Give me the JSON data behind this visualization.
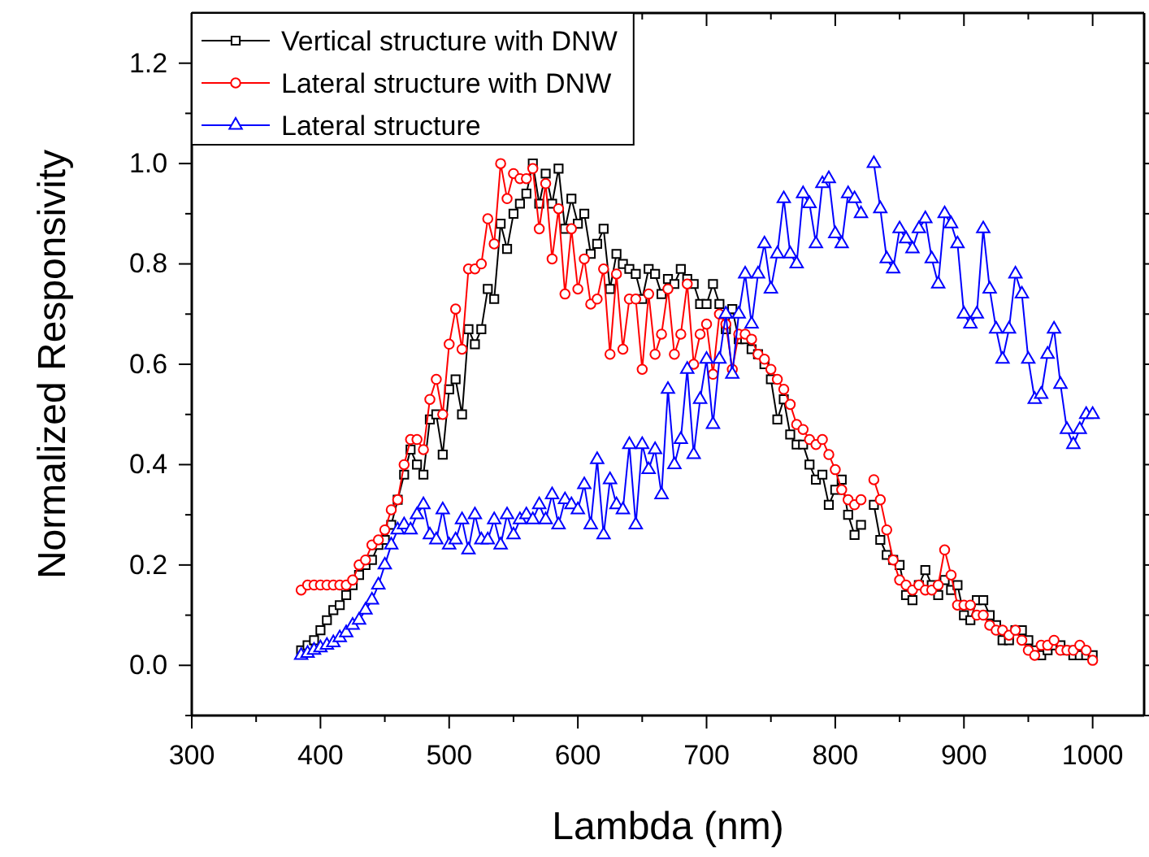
{
  "chart_data": {
    "type": "line",
    "xlabel": "Lambda (nm)",
    "ylabel": "Normalized Responsivity",
    "xlim": [
      300,
      1040
    ],
    "ylim": [
      -0.1,
      1.3
    ],
    "xticks": [
      300,
      {
        "value": 350,
        "label": null
      },
      400,
      {
        "value": 450,
        "label": null
      },
      500,
      {
        "value": 550,
        "label": null
      },
      600,
      {
        "value": 650,
        "label": null
      },
      700,
      {
        "value": 750,
        "label": null
      },
      800,
      {
        "value": 850,
        "label": null
      },
      900,
      {
        "value": 950,
        "label": null
      },
      1000
    ],
    "yticks": [
      {
        "value": -0.1,
        "label": null
      },
      {
        "value": 0,
        "label": "0.0"
      },
      {
        "value": 0.1,
        "label": null
      },
      {
        "value": 0.2,
        "label": "0.2"
      },
      {
        "value": 0.3,
        "label": null
      },
      {
        "value": 0.4,
        "label": "0.4"
      },
      {
        "value": 0.5,
        "label": null
      },
      {
        "value": 0.6,
        "label": "0.6"
      },
      {
        "value": 0.7,
        "label": null
      },
      {
        "value": 0.8,
        "label": "0.8"
      },
      {
        "value": 0.9,
        "label": null
      },
      {
        "value": 1.0,
        "label": "1.0"
      },
      {
        "value": 1.1,
        "label": null
      },
      {
        "value": 1.2,
        "label": "1.2"
      }
    ],
    "legend": "top left",
    "grid": false,
    "line_style": "solid",
    "series": [
      {
        "name": "Vertical structure with DNW",
        "color": "#000000",
        "marker": "square",
        "values": [
          0.03,
          0.04,
          0.05,
          0.07,
          0.09,
          0.11,
          0.12,
          0.14,
          0.16,
          0.18,
          0.2,
          0.21,
          0.24,
          0.25,
          0.28,
          0.33,
          0.38,
          0.43,
          0.4,
          0.38,
          0.49,
          0.5,
          0.42,
          0.55,
          0.57,
          0.5,
          0.67,
          0.64,
          0.67,
          0.75,
          0.73,
          0.88,
          0.83,
          0.9,
          0.92,
          0.94,
          1.0,
          0.92,
          0.98,
          0.92,
          0.99,
          0.87,
          0.93,
          0.88,
          0.9,
          0.82,
          0.84,
          0.87,
          0.75,
          0.82,
          0.8,
          0.79,
          0.78,
          0.73,
          0.79,
          0.78,
          0.74,
          0.77,
          0.76,
          0.79,
          0.77,
          0.76,
          0.72,
          0.72,
          0.76,
          0.72,
          0.67,
          0.71,
          0.65,
          0.65,
          0.63,
          0.62,
          0.6,
          0.57,
          0.49,
          0.53,
          0.46,
          0.44,
          0.44,
          0.4,
          0.37,
          0.38,
          0.32,
          0.35,
          0.37,
          0.3,
          0.26,
          0.28,
          null,
          0.32,
          0.25,
          0.22,
          0.21,
          0.2,
          0.14,
          0.13,
          0.16,
          0.19,
          0.16,
          0.14,
          0.17,
          0.15,
          0.16,
          0.1,
          0.09,
          0.13,
          0.13,
          0.1,
          0.08,
          0.05,
          0.05,
          0.07,
          0.07,
          0.05,
          0.03,
          0.02,
          0.03,
          0.04,
          0.04,
          0.03,
          0.02,
          0.02,
          0.02,
          0.02
        ]
      },
      {
        "name": "Lateral structure with DNW",
        "color": "#ff0000",
        "marker": "circle",
        "values": [
          0.15,
          0.16,
          0.16,
          0.16,
          0.16,
          0.16,
          0.16,
          0.16,
          0.17,
          0.2,
          0.21,
          0.24,
          0.25,
          0.27,
          0.31,
          0.33,
          0.4,
          0.45,
          0.45,
          0.43,
          0.53,
          0.57,
          0.5,
          0.64,
          0.71,
          0.63,
          0.79,
          0.79,
          0.8,
          0.89,
          0.84,
          1.0,
          0.93,
          0.98,
          0.97,
          0.97,
          0.99,
          0.87,
          0.96,
          0.81,
          0.91,
          0.74,
          0.87,
          0.75,
          0.81,
          0.72,
          0.73,
          0.79,
          0.62,
          0.78,
          0.63,
          0.73,
          0.73,
          0.59,
          0.74,
          0.62,
          0.66,
          0.75,
          0.62,
          0.66,
          0.76,
          0.6,
          0.66,
          0.68,
          0.58,
          0.7,
          0.68,
          0.59,
          0.66,
          0.66,
          0.65,
          0.62,
          0.61,
          0.59,
          0.57,
          0.55,
          0.52,
          0.48,
          0.47,
          0.45,
          0.44,
          0.45,
          0.42,
          0.39,
          0.35,
          0.33,
          0.32,
          0.33,
          null,
          0.37,
          0.33,
          0.27,
          0.21,
          0.17,
          0.16,
          0.15,
          0.16,
          0.15,
          0.15,
          0.16,
          0.23,
          0.18,
          0.12,
          0.12,
          0.12,
          0.1,
          0.1,
          0.08,
          0.07,
          0.07,
          0.06,
          0.07,
          0.05,
          0.03,
          0.02,
          0.04,
          0.04,
          0.05,
          0.03,
          0.03,
          0.03,
          0.04,
          0.03,
          0.01
        ]
      },
      {
        "name": "Lateral structure",
        "color": "#0000ff",
        "marker": "triangle",
        "values": [
          0.02,
          0.024,
          0.03,
          0.035,
          0.04,
          0.045,
          0.055,
          0.065,
          0.08,
          0.09,
          0.11,
          0.13,
          0.16,
          0.2,
          0.24,
          0.27,
          0.28,
          0.27,
          0.3,
          0.32,
          0.26,
          0.25,
          0.31,
          0.24,
          0.25,
          0.29,
          0.23,
          0.3,
          0.25,
          0.25,
          0.29,
          0.24,
          0.3,
          0.26,
          0.29,
          0.3,
          0.29,
          0.32,
          0.29,
          0.34,
          0.28,
          0.33,
          0.32,
          0.31,
          0.36,
          0.28,
          0.41,
          0.26,
          0.37,
          0.32,
          0.31,
          0.44,
          0.28,
          0.44,
          0.39,
          0.43,
          0.34,
          0.55,
          0.4,
          0.45,
          0.59,
          0.42,
          0.53,
          0.61,
          0.48,
          0.61,
          0.7,
          0.58,
          0.7,
          0.78,
          0.68,
          0.78,
          0.84,
          0.75,
          0.82,
          0.93,
          0.82,
          0.8,
          0.94,
          0.92,
          0.84,
          0.96,
          0.97,
          0.86,
          0.84,
          0.94,
          0.93,
          0.9,
          null,
          1.0,
          0.91,
          0.81,
          0.79,
          0.87,
          0.85,
          0.83,
          0.87,
          0.89,
          0.81,
          0.76,
          0.9,
          0.88,
          0.84,
          0.7,
          0.68,
          0.7,
          0.87,
          0.75,
          0.67,
          0.61,
          0.67,
          0.78,
          0.74,
          0.61,
          0.53,
          0.54,
          0.62,
          0.67,
          0.56,
          0.47,
          0.44,
          0.47,
          0.5,
          0.5
        ]
      }
    ],
    "x": [
      385,
      390,
      395,
      400,
      405,
      410,
      415,
      420,
      425,
      430,
      435,
      440,
      445,
      450,
      455,
      460,
      465,
      470,
      475,
      480,
      485,
      490,
      495,
      500,
      505,
      510,
      515,
      520,
      525,
      530,
      535,
      540,
      545,
      550,
      555,
      560,
      565,
      570,
      575,
      580,
      585,
      590,
      595,
      600,
      605,
      610,
      615,
      620,
      625,
      630,
      635,
      640,
      645,
      650,
      655,
      660,
      665,
      670,
      675,
      680,
      685,
      690,
      695,
      700,
      705,
      710,
      715,
      720,
      725,
      730,
      735,
      740,
      745,
      750,
      755,
      760,
      765,
      770,
      775,
      780,
      785,
      790,
      795,
      800,
      805,
      810,
      815,
      820,
      825,
      830,
      835,
      840,
      845,
      850,
      855,
      860,
      865,
      870,
      875,
      880,
      885,
      890,
      895,
      900,
      905,
      910,
      915,
      920,
      925,
      930,
      935,
      940,
      945,
      950,
      955,
      960,
      965,
      970,
      975,
      980,
      985,
      990,
      995,
      1000
    ]
  }
}
